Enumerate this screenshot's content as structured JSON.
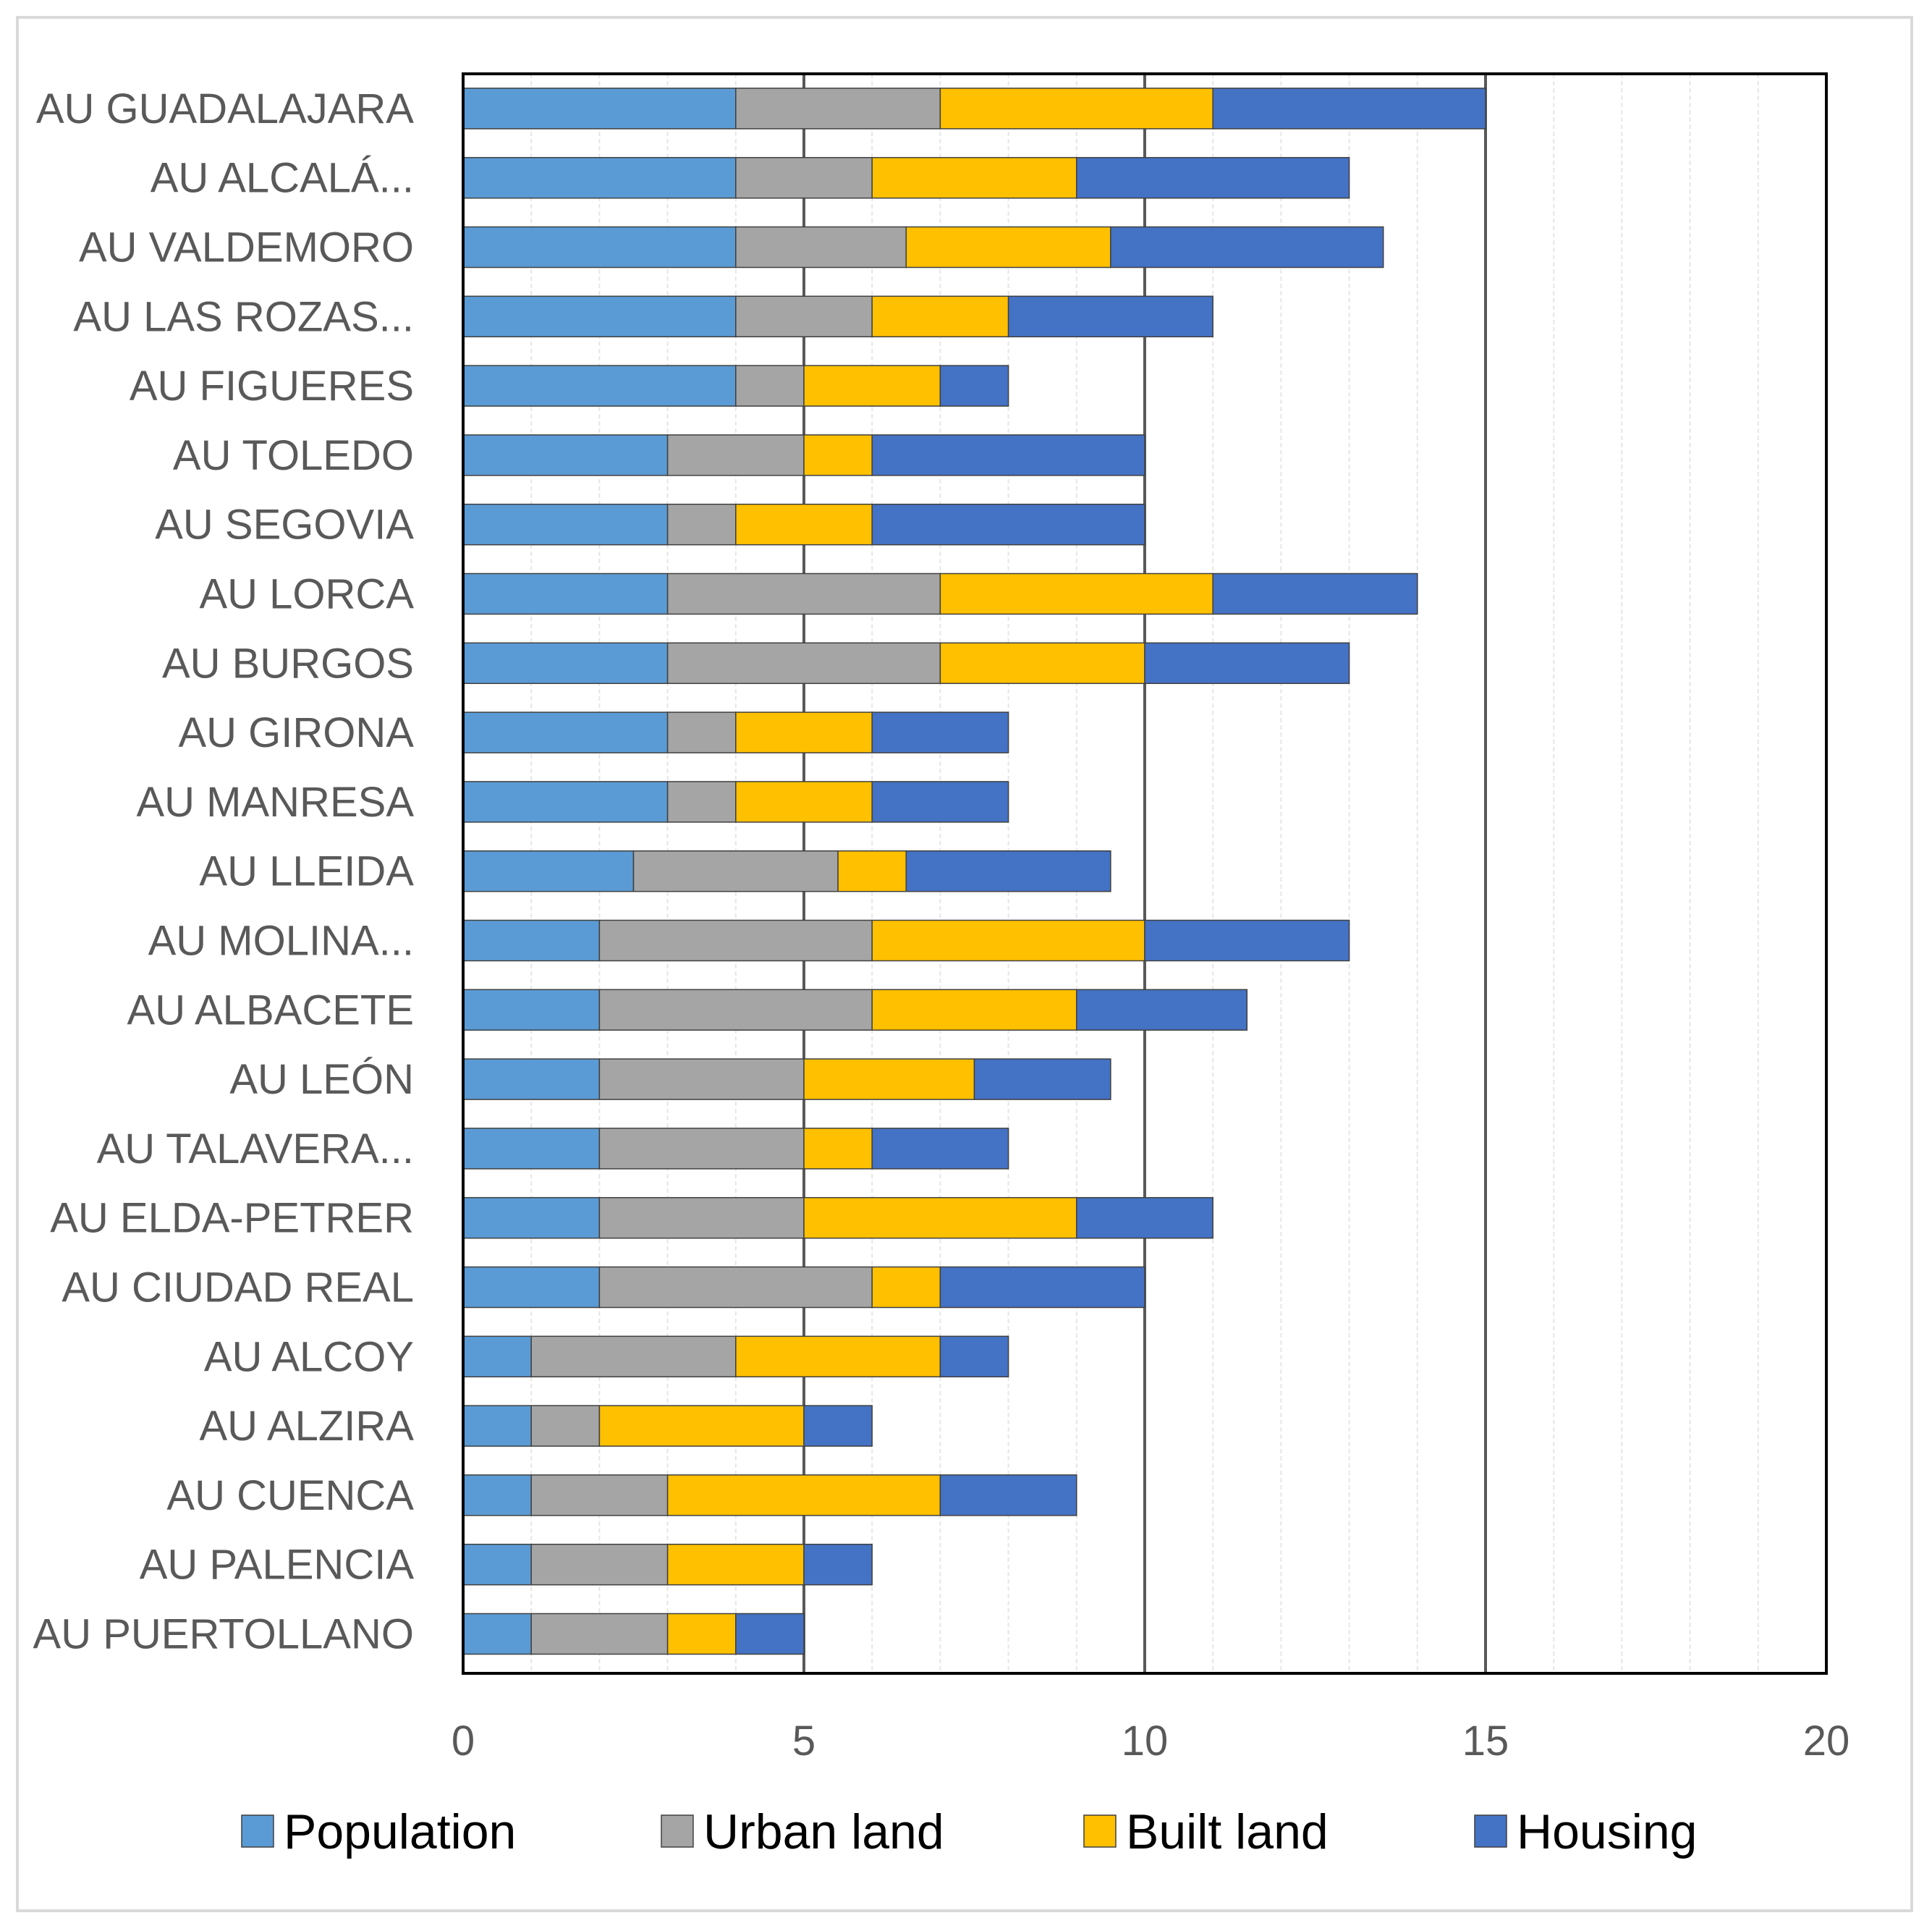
{
  "chart_data": {
    "type": "bar",
    "orientation": "horizontal",
    "stacked": true,
    "title": "",
    "xlabel": "",
    "ylabel": "",
    "xlim": [
      0,
      20
    ],
    "xticks": [
      0,
      5,
      10,
      15,
      20
    ],
    "grid": "vertical major and minor",
    "legend_position": "bottom",
    "categories": [
      "AU GUADALAJARA",
      "AU ALCALÁ...",
      "AU VALDEMORO",
      "AU LAS ROZAS...",
      "AU FIGUERES",
      "AU TOLEDO",
      "AU SEGOVIA",
      "AU LORCA",
      "AU BURGOS",
      "AU GIRONA",
      "AU MANRESA",
      "AU LLEIDA",
      "AU MOLINA...",
      "AU ALBACETE",
      "AU LEÓN",
      "AU TALAVERA...",
      "AU ELDA-PETRER",
      "AU CIUDAD REAL",
      "AU ALCOY",
      "AU ALZIRA",
      "AU CUENCA",
      "AU PALENCIA",
      "AU PUERTOLLANO"
    ],
    "series": [
      {
        "name": "Population",
        "color": "#5B9BD5",
        "values": [
          4,
          4,
          4,
          4,
          4,
          3,
          3,
          3,
          3,
          3,
          3,
          2.5,
          2,
          2,
          2,
          2,
          2,
          2,
          1,
          1,
          1,
          1,
          1
        ]
      },
      {
        "name": "Urban land",
        "color": "#A5A5A5",
        "values": [
          3,
          2,
          2.5,
          2,
          1,
          2,
          1,
          4,
          4,
          1,
          1,
          3,
          4,
          4,
          3,
          3,
          3,
          4,
          3,
          1,
          2,
          2,
          2
        ]
      },
      {
        "name": "Built land",
        "color": "#FFC000",
        "values": [
          4,
          3,
          3,
          2,
          2,
          1,
          2,
          4,
          3,
          2,
          2,
          1,
          4,
          3,
          2.5,
          1,
          4,
          1,
          3,
          3,
          4,
          2,
          1
        ]
      },
      {
        "name": "Housing",
        "color": "#4472C4",
        "values": [
          4,
          4,
          4,
          3,
          1,
          4,
          4,
          3,
          3,
          2,
          2,
          3,
          3,
          2.5,
          2,
          2,
          2,
          3,
          1,
          1,
          2,
          1,
          1
        ]
      }
    ]
  }
}
